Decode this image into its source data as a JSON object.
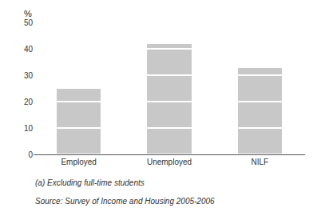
{
  "chart_data": {
    "type": "bar",
    "stacked": true,
    "categories": [
      "Employed",
      "Unemployed",
      "NILF"
    ],
    "segments": [
      [
        10,
        10,
        5
      ],
      [
        10,
        10,
        10,
        10,
        2
      ],
      [
        10,
        10,
        10,
        3
      ]
    ],
    "color": "#c8c8c8",
    "ylabel": "%",
    "ylim": [
      0,
      50
    ],
    "yticks": [
      0,
      10,
      20,
      30,
      40,
      50
    ],
    "grid": false,
    "annotations": [
      "(a) Excluding full-time students",
      "Source: Survey of Income and Housing 2005-2006"
    ]
  }
}
